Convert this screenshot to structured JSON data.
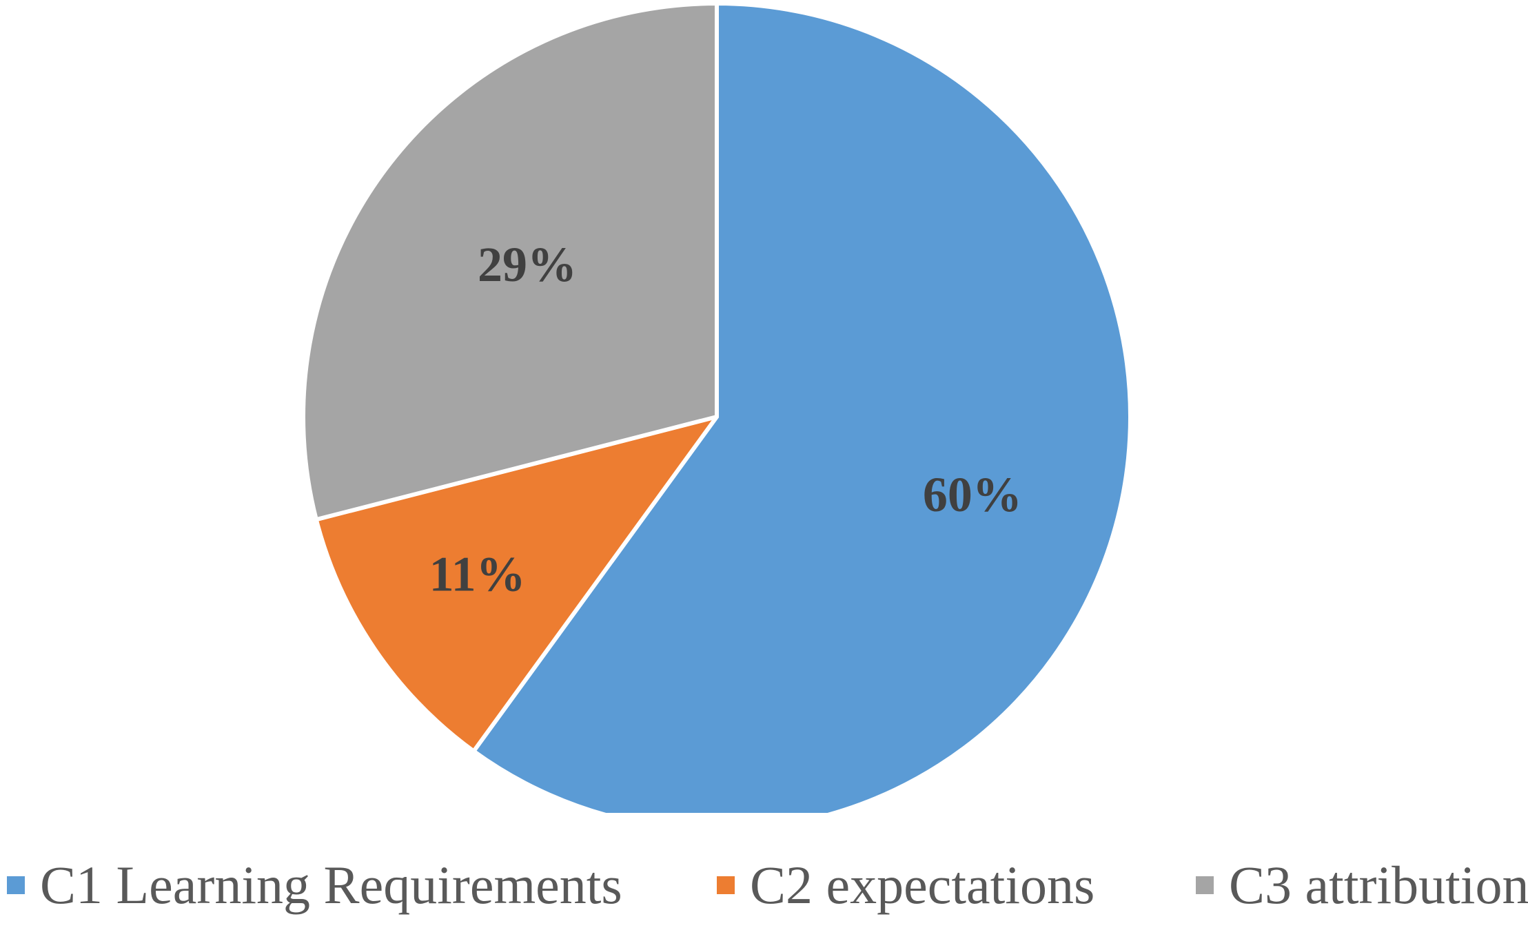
{
  "chart_data": {
    "type": "pie",
    "slices": [
      {
        "name": "C1 Learning Requirements",
        "value": 60,
        "label": "60%",
        "color": "#5B9BD5"
      },
      {
        "name": "C2 expectations",
        "value": 11,
        "label": "11%",
        "color": "#ED7D31"
      },
      {
        "name": "C3 attribution",
        "value": 29,
        "label": "29%",
        "color": "#A5A5A5"
      }
    ],
    "start": "12 o'clock",
    "direction": "clockwise",
    "legend_position": "bottom"
  }
}
